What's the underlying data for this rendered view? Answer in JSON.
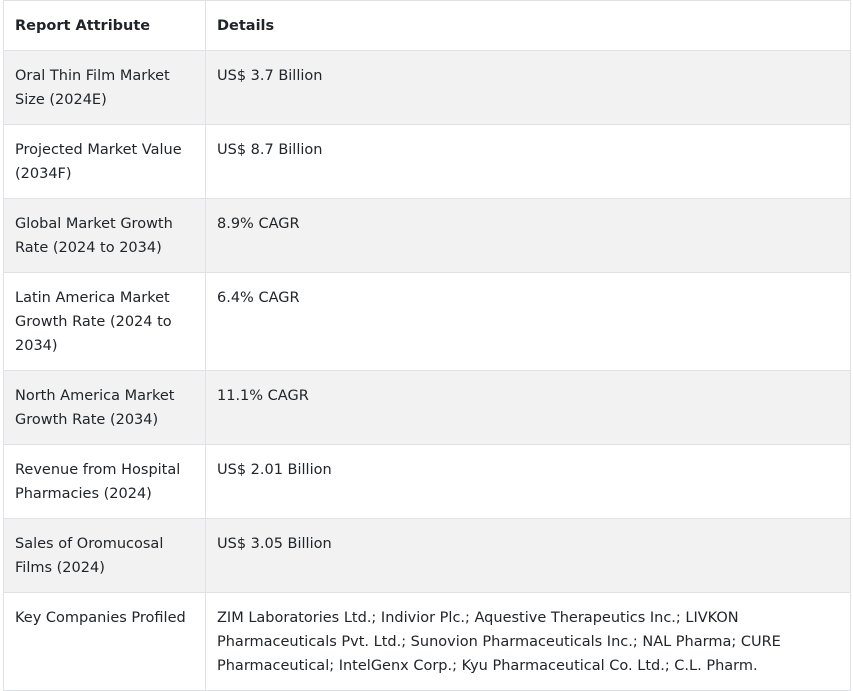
{
  "table": {
    "headers": [
      "Report Attribute",
      "Details"
    ],
    "rows": [
      {
        "attribute": "Oral Thin Film Market Size (2024E)",
        "details": "US$ 3.7 Billion"
      },
      {
        "attribute": "Projected Market Value (2034F)",
        "details": "US$ 8.7 Billion"
      },
      {
        "attribute": "Global Market Growth Rate (2024 to 2034)",
        "details": "8.9% CAGR"
      },
      {
        "attribute": "Latin America Market Growth Rate (2024 to 2034)",
        "details": "6.4% CAGR"
      },
      {
        "attribute": "North America Market Growth Rate (2034)",
        "details": "11.1% CAGR"
      },
      {
        "attribute": "Revenue from Hospital Pharmacies (2024)",
        "details": "US$ 2.01 Billion"
      },
      {
        "attribute": "Sales of Oromucosal Films (2024)",
        "details": "US$ 3.05 Billion"
      },
      {
        "attribute": "Key Companies Profiled",
        "details": "ZIM Laboratories Ltd.; Indivior Plc.; Aquestive Therapeutics Inc.; LIVKON Pharmaceuticals Pvt. Ltd.; Sunovion Pharmaceuticals Inc.; NAL Pharma; CURE Pharmaceutical; IntelGenx Corp.; Kyu Pharmaceutical Co. Ltd.; C.L. Pharm."
      }
    ]
  }
}
